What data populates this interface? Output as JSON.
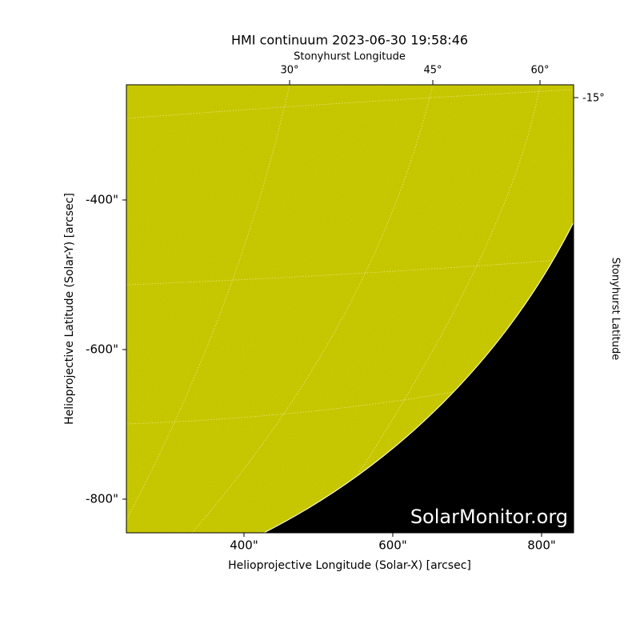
{
  "chart_data": {
    "type": "image",
    "title": "HMI continuum 2023-06-30 19:58:46",
    "x_label": "Helioprojective Longitude (Solar-X) [arcsec]",
    "y_label": "Helioprojective Latitude (Solar-Y) [arcsec]",
    "top_label": "Stonyhurst Longitude",
    "right_label": "Stonyhurst Latitude",
    "xlim": [
      242,
      843
    ],
    "ylim": [
      -845,
      -246
    ],
    "xticks": [
      {
        "value": 400,
        "label": "400\""
      },
      {
        "value": 600,
        "label": "600\""
      },
      {
        "value": 800,
        "label": "800\""
      }
    ],
    "yticks": [
      {
        "value": -400,
        "label": "-400\""
      },
      {
        "value": -600,
        "label": "-600\""
      },
      {
        "value": -800,
        "label": "-800\""
      }
    ],
    "top_ticks": [
      "30°",
      "45°",
      "60°"
    ],
    "right_ticks": [
      "-15°"
    ],
    "watermark": "SolarMonitor.org",
    "color": "#cccc00"
  }
}
